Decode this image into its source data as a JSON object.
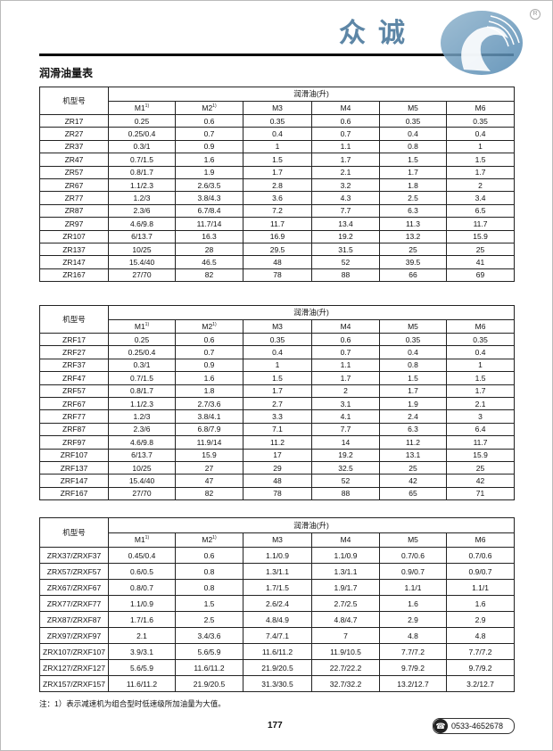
{
  "page_title": "润滑油量表",
  "brand": {
    "name": "众诚",
    "reg_mark": "R",
    "accent_color": "#5d86a6"
  },
  "column_group": "润滑油(升)",
  "model_header": "机型号",
  "positions": [
    "M1",
    "M2",
    "M3",
    "M4",
    "M5",
    "M6"
  ],
  "footnote_mark": "1)",
  "tables": [
    {
      "rows": [
        [
          "ZR17",
          "0.25",
          "0.6",
          "0.35",
          "0.6",
          "0.35",
          "0.35"
        ],
        [
          "ZR27",
          "0.25/0.4",
          "0.7",
          "0.4",
          "0.7",
          "0.4",
          "0.4"
        ],
        [
          "ZR37",
          "0.3/1",
          "0.9",
          "1",
          "1.1",
          "0.8",
          "1"
        ],
        [
          "ZR47",
          "0.7/1.5",
          "1.6",
          "1.5",
          "1.7",
          "1.5",
          "1.5"
        ],
        [
          "ZR57",
          "0.8/1.7",
          "1.9",
          "1.7",
          "2.1",
          "1.7",
          "1.7"
        ],
        [
          "ZR67",
          "1.1/2.3",
          "2.6/3.5",
          "2.8",
          "3.2",
          "1.8",
          "2"
        ],
        [
          "ZR77",
          "1.2/3",
          "3.8/4.3",
          "3.6",
          "4.3",
          "2.5",
          "3.4"
        ],
        [
          "ZR87",
          "2.3/6",
          "6.7/8.4",
          "7.2",
          "7.7",
          "6.3",
          "6.5"
        ],
        [
          "ZR97",
          "4.6/9.8",
          "11.7/14",
          "11.7",
          "13.4",
          "11.3",
          "11.7"
        ],
        [
          "ZR107",
          "6/13.7",
          "16.3",
          "16.9",
          "19.2",
          "13.2",
          "15.9"
        ],
        [
          "ZR137",
          "10/25",
          "28",
          "29.5",
          "31.5",
          "25",
          "25"
        ],
        [
          "ZR147",
          "15.4/40",
          "46.5",
          "48",
          "52",
          "39.5",
          "41"
        ],
        [
          "ZR167",
          "27/70",
          "82",
          "78",
          "88",
          "66",
          "69"
        ]
      ]
    },
    {
      "rows": [
        [
          "ZRF17",
          "0.25",
          "0.6",
          "0.35",
          "0.6",
          "0.35",
          "0.35"
        ],
        [
          "ZRF27",
          "0.25/0.4",
          "0.7",
          "0.4",
          "0.7",
          "0.4",
          "0.4"
        ],
        [
          "ZRF37",
          "0.3/1",
          "0.9",
          "1",
          "1.1",
          "0.8",
          "1"
        ],
        [
          "ZRF47",
          "0.7/1.5",
          "1.6",
          "1.5",
          "1.7",
          "1.5",
          "1.5"
        ],
        [
          "ZRF57",
          "0.8/1.7",
          "1.8",
          "1.7",
          "2",
          "1.7",
          "1.7"
        ],
        [
          "ZRF67",
          "1.1/2.3",
          "2.7/3.6",
          "2.7",
          "3.1",
          "1.9",
          "2.1"
        ],
        [
          "ZRF77",
          "1.2/3",
          "3.8/4.1",
          "3.3",
          "4.1",
          "2.4",
          "3"
        ],
        [
          "ZRF87",
          "2.3/6",
          "6.8/7.9",
          "7.1",
          "7.7",
          "6.3",
          "6.4"
        ],
        [
          "ZRF97",
          "4.6/9.8",
          "11.9/14",
          "11.2",
          "14",
          "11.2",
          "11.7"
        ],
        [
          "ZRF107",
          "6/13.7",
          "15.9",
          "17",
          "19.2",
          "13.1",
          "15.9"
        ],
        [
          "ZRF137",
          "10/25",
          "27",
          "29",
          "32.5",
          "25",
          "25"
        ],
        [
          "ZRF147",
          "15.4/40",
          "47",
          "48",
          "52",
          "42",
          "42"
        ],
        [
          "ZRF167",
          "27/70",
          "82",
          "78",
          "88",
          "65",
          "71"
        ]
      ]
    },
    {
      "rows": [
        [
          "ZRX37/ZRXF37",
          "0.45/0.4",
          "0.6",
          "1.1/0.9",
          "1.1/0.9",
          "0.7/0.6",
          "0.7/0.6"
        ],
        [
          "ZRX57/ZRXF57",
          "0.6/0.5",
          "0.8",
          "1.3/1.1",
          "1.3/1.1",
          "0.9/0.7",
          "0.9/0.7"
        ],
        [
          "ZRX67/ZRXF67",
          "0.8/0.7",
          "0.8",
          "1.7/1.5",
          "1.9/1.7",
          "1.1/1",
          "1.1/1"
        ],
        [
          "ZRX77/ZRXF77",
          "1.1/0.9",
          "1.5",
          "2.6/2.4",
          "2.7/2.5",
          "1.6",
          "1.6"
        ],
        [
          "ZRX87/ZRXF87",
          "1.7/1.6",
          "2.5",
          "4.8/4.9",
          "4.8/4.7",
          "2.9",
          "2.9"
        ],
        [
          "ZRX97/ZRXF97",
          "2.1",
          "3.4/3.6",
          "7.4/7.1",
          "7",
          "4.8",
          "4.8"
        ],
        [
          "ZRX107/ZRXF107",
          "3.9/3.1",
          "5.6/5.9",
          "11.6/11.2",
          "11.9/10.5",
          "7.7/7.2",
          "7.7/7.2"
        ],
        [
          "ZRX127/ZRXF127",
          "5.6/5.9",
          "11.6/11.2",
          "21.9/20.5",
          "22.7/22.2",
          "9.7/9.2",
          "9.7/9.2"
        ],
        [
          "ZRX157/ZRXF157",
          "11.6/11.2",
          "21.9/20.5",
          "31.3/30.5",
          "32.7/32.2",
          "13.2/12.7",
          "3.2/12.7"
        ]
      ]
    }
  ],
  "footnote": "注：1）表示减速机为组合型时低速级所加油量为大值。",
  "page_number": "177",
  "phone": {
    "icon": "telephone-icon",
    "number": "0533-4652678"
  }
}
